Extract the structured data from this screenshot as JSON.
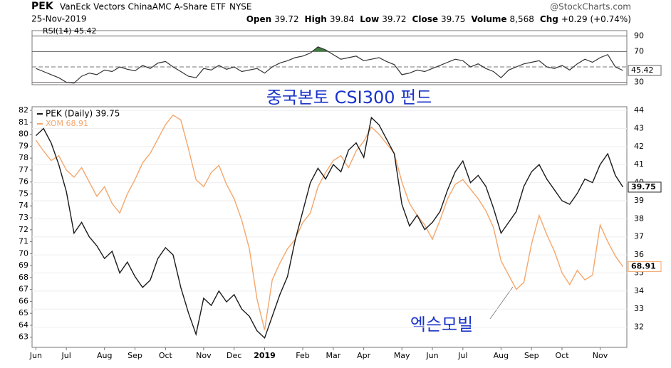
{
  "header": {
    "symbol": "PEK",
    "name": "VanEck Vectors ChinaAMC A-Share ETF",
    "exchange": "NYSE",
    "date": "25-Nov-2019",
    "source": "@StockCharts.com",
    "quote": [
      {
        "label": "Open",
        "value": "39.72"
      },
      {
        "label": "High",
        "value": "39.84"
      },
      {
        "label": "Low",
        "value": "39.72"
      },
      {
        "label": "Close",
        "value": "39.75"
      },
      {
        "label": "Volume",
        "value": "8,568"
      },
      {
        "label": "Chg",
        "value": "+0.29 (+0.74%)"
      }
    ]
  },
  "chart_data": [
    {
      "type": "line",
      "label": "RSI(14) 45.42",
      "series": [
        {
          "name": "RSI(14)",
          "color": "#333333",
          "values": [
            48,
            44,
            40,
            36,
            30,
            29,
            38,
            42,
            40,
            46,
            44,
            50,
            47,
            45,
            52,
            48,
            55,
            57,
            50,
            44,
            38,
            36,
            48,
            46,
            52,
            47,
            50,
            44,
            46,
            48,
            42,
            50,
            55,
            58,
            62,
            64,
            68,
            76,
            72,
            66,
            60,
            62,
            64,
            58,
            60,
            62,
            57,
            53,
            40,
            42,
            46,
            44,
            48,
            52,
            56,
            60,
            58,
            50,
            54,
            48,
            44,
            36,
            46,
            50,
            54,
            56,
            58,
            50,
            48,
            52,
            46,
            54,
            60,
            56,
            62,
            66,
            50,
            45.42
          ]
        }
      ],
      "ylim": [
        27,
        97
      ],
      "yticks": [
        30,
        70,
        90
      ],
      "midline": 50,
      "overbought": 70,
      "oversold": 30,
      "overbought_color": "#3f7f3f",
      "oversold_color": "#b03030"
    },
    {
      "type": "line",
      "categories": [
        "Jun",
        null,
        null,
        null,
        "Jul",
        null,
        null,
        null,
        null,
        "Aug",
        null,
        null,
        null,
        "Sep",
        null,
        null,
        null,
        "Oct",
        null,
        null,
        null,
        null,
        "Nov",
        null,
        null,
        null,
        "Dec",
        null,
        null,
        null,
        "2019",
        null,
        null,
        null,
        null,
        "Feb",
        null,
        null,
        null,
        "Mar",
        null,
        null,
        null,
        "Apr",
        null,
        null,
        null,
        null,
        "May",
        null,
        null,
        null,
        "Jun",
        null,
        null,
        null,
        "Jul",
        null,
        null,
        null,
        null,
        "Aug",
        null,
        null,
        null,
        "Sep",
        null,
        null,
        null,
        "Oct",
        null,
        null,
        null,
        null,
        "Nov",
        null,
        null,
        null
      ],
      "series": [
        {
          "name": "PEK (Daily) 39.75",
          "color": "#1a1a1a",
          "axis": "y2",
          "values": [
            42.6,
            43.0,
            42.2,
            41.0,
            39.5,
            37.2,
            37.8,
            37.0,
            36.5,
            35.8,
            36.2,
            35.0,
            35.6,
            34.8,
            34.2,
            34.6,
            35.8,
            36.4,
            36.0,
            34.2,
            32.8,
            31.6,
            33.6,
            33.2,
            34.0,
            33.4,
            33.8,
            33.0,
            32.6,
            31.8,
            31.4,
            32.6,
            33.8,
            34.8,
            36.8,
            38.4,
            40.0,
            40.8,
            40.2,
            41.0,
            40.6,
            41.8,
            42.2,
            41.4,
            43.6,
            43.2,
            42.4,
            41.6,
            38.8,
            37.6,
            38.2,
            37.4,
            37.8,
            38.4,
            39.6,
            40.6,
            41.2,
            40.0,
            40.4,
            39.8,
            38.6,
            37.2,
            37.8,
            38.4,
            39.8,
            40.6,
            41.0,
            40.2,
            39.6,
            39.0,
            38.8,
            39.4,
            40.2,
            40.0,
            41.0,
            41.6,
            40.4,
            39.75
          ]
        },
        {
          "name": "XOM 68.91",
          "color": "#f5a66b",
          "axis": "y",
          "values": [
            79.5,
            78.6,
            77.8,
            78.2,
            77.0,
            76.4,
            77.2,
            76.0,
            74.8,
            75.6,
            74.2,
            73.4,
            75.0,
            76.2,
            77.6,
            78.4,
            79.6,
            80.8,
            81.6,
            81.2,
            78.8,
            76.2,
            75.6,
            76.8,
            77.4,
            75.8,
            74.6,
            72.8,
            70.4,
            66.2,
            63.6,
            67.8,
            69.2,
            70.4,
            71.2,
            72.6,
            73.4,
            75.6,
            76.8,
            77.8,
            78.2,
            77.2,
            78.6,
            79.4,
            80.6,
            80.0,
            79.2,
            78.4,
            76.0,
            74.2,
            73.2,
            72.4,
            71.2,
            72.8,
            74.6,
            75.8,
            76.2,
            75.4,
            74.6,
            73.6,
            72.2,
            69.4,
            68.2,
            67.0,
            67.6,
            70.8,
            73.2,
            71.6,
            70.2,
            68.4,
            67.4,
            68.6,
            67.8,
            68.2,
            72.4,
            71.0,
            69.8,
            68.91
          ]
        }
      ],
      "ylim": [
        62.15,
        82.3
      ],
      "yticks": [
        63,
        64,
        65,
        66,
        67,
        68,
        69,
        70,
        71,
        72,
        73,
        74,
        75,
        76,
        77,
        78,
        79,
        80,
        81,
        82
      ],
      "y2lim": [
        30.88,
        44.2
      ],
      "y2ticks": [
        32,
        33,
        34,
        35,
        36,
        37,
        38,
        39,
        40,
        41,
        42,
        43,
        44
      ],
      "grid": true,
      "annotations": [
        "중국본토 CSI300 펀드",
        "엑슨모빌"
      ]
    }
  ]
}
